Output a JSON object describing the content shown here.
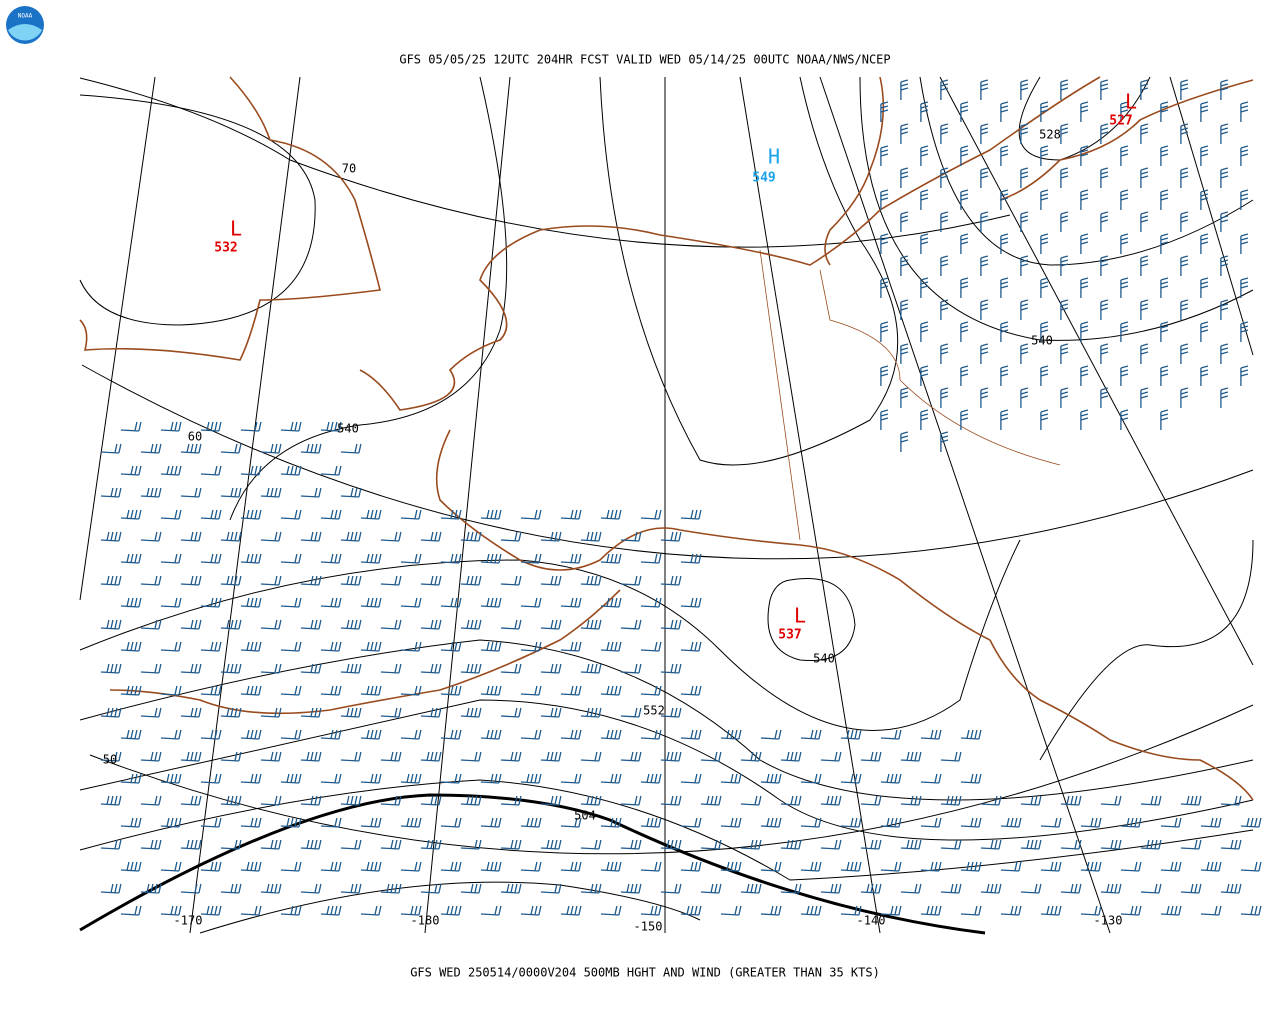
{
  "header": {
    "logo": "NOAA",
    "title": "GFS 05/05/25 12UTC 204HR FCST VALID WED 05/14/25 00UTC NOAA/NWS/NCEP"
  },
  "footer": {
    "caption": "GFS WED 250514/0000V204 500MB HGHT AND WIND (GREATER THAN 35 KTS)"
  },
  "pressure_centers": [
    {
      "symbol": "L",
      "value": "532"
    },
    {
      "symbol": "H",
      "value": "549"
    },
    {
      "symbol": "L",
      "value": "527"
    },
    {
      "symbol": "L",
      "value": "537"
    }
  ],
  "contour_labels": [
    "528",
    "540",
    "540",
    "540",
    "552",
    "504"
  ],
  "latitude_labels": [
    "70",
    "60",
    "50"
  ],
  "longitude_labels": [
    "-170",
    "-180",
    "-150",
    "-140",
    "-130"
  ]
}
